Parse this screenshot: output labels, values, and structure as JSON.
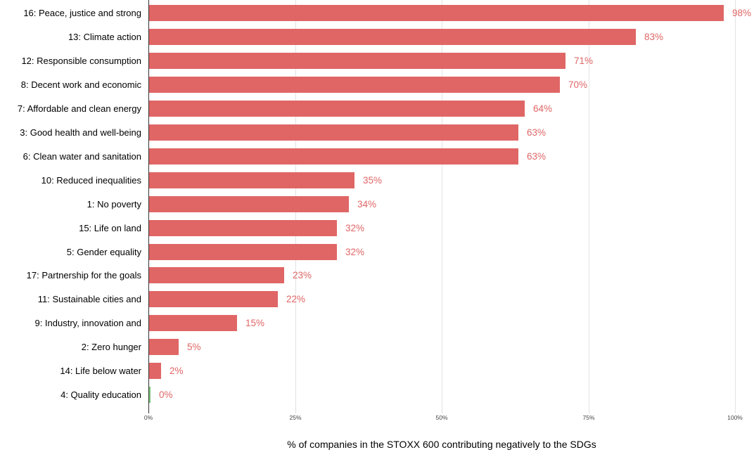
{
  "chart_data": {
    "type": "bar",
    "orientation": "horizontal",
    "title": "",
    "xlabel": "% of companies in the STOXX 600 contributing negatively to the SDGs",
    "ylabel": "",
    "categories": [
      "16: Peace, justice and strong",
      "13: Climate action",
      "12: Responsible consumption",
      "8: Decent work and economic",
      "7: Affordable and clean energy",
      "3: Good health and well-being",
      "6: Clean water and sanitation",
      "10: Reduced inequalities",
      "1: No poverty",
      "15: Life on land",
      "5: Gender equality",
      "17: Partnership for the goals",
      "11: Sustainable cities and",
      "9: Industry, innovation and",
      "2: Zero hunger",
      "14: Life below water",
      "4: Quality education"
    ],
    "values": [
      98,
      83,
      71,
      70,
      64,
      63,
      63,
      35,
      34,
      32,
      32,
      23,
      22,
      15,
      5,
      2,
      0
    ],
    "value_labels": [
      "98%",
      "83%",
      "71%",
      "70%",
      "64%",
      "63%",
      "63%",
      "35%",
      "34%",
      "32%",
      "32%",
      "23%",
      "22%",
      "15%",
      "5%",
      "2%",
      "0%"
    ],
    "x_ticks": [
      "0%",
      "25%",
      "50%",
      "75%",
      "100%"
    ],
    "xlim": [
      0,
      100
    ],
    "grid": true,
    "legend": "none",
    "colors": {
      "bar": "#E06666",
      "zero_bar": "#7CC57C",
      "value_label": "#E06666",
      "gridline": "#E2E2E2",
      "axis_line": "#333333",
      "tick_label": "#444444",
      "category_label": "#000000",
      "background": "#FFFFFF"
    }
  }
}
